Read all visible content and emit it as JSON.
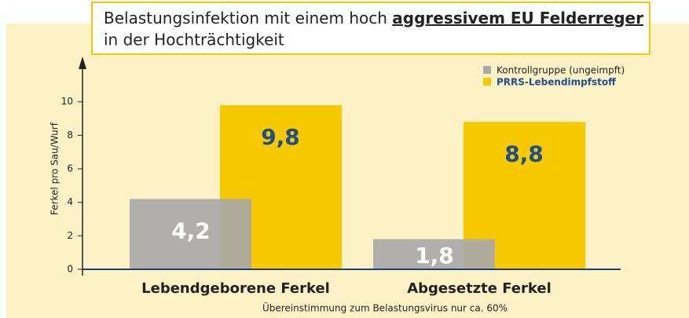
{
  "chart_data": {
    "type": "bar",
    "title_parts": [
      "Belastungsinfektion mit einem hoch",
      "aggressivem EU Felderreger",
      "in der Hochträchtigkeit"
    ],
    "y_label": "Ferkel pro Sau/Wurf",
    "note": "Übereinstimmung zum Belastungsvirus nur ca. 60%",
    "categories": [
      "Lebendgeborene Ferkel",
      "Abgesetzte Ferkel"
    ],
    "series": [
      {
        "name": "Kontrollgruppe (ungeimpft)",
        "color": "#a9a9a9",
        "values": [
          4.2,
          1.8
        ],
        "value_labels": [
          "4,2",
          "1,8"
        ]
      },
      {
        "name": "PRRS-Lebendimpfstoff",
        "color": "#f6c900",
        "values": [
          9.8,
          8.8
        ],
        "value_labels": [
          "9,8",
          "8,8"
        ]
      }
    ],
    "ylim": [
      0,
      12
    ],
    "yticks": [
      0,
      2,
      4,
      6,
      8,
      10
    ]
  }
}
